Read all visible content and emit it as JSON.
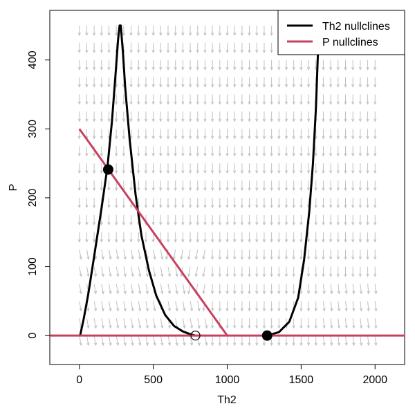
{
  "chart_data": {
    "type": "phase-plane",
    "title": "",
    "xlabel": "Th2",
    "ylabel": "P",
    "xlim": [
      -200,
      2200
    ],
    "ylim": [
      -42,
      472
    ],
    "xticks": [
      0,
      500,
      1000,
      1500,
      2000
    ],
    "yticks": [
      0,
      100,
      200,
      300,
      400
    ],
    "grid": false,
    "legend": {
      "position": "top-right",
      "entries": [
        {
          "label": "Th2 nullclines",
          "color": "#000000"
        },
        {
          "label": "P nullclines",
          "color": "#c8405e"
        }
      ]
    },
    "series": [
      {
        "name": "Th2 nullcline (left hump)",
        "legend": "Th2 nullclines",
        "color": "#000000",
        "x": [
          5,
          30,
          60,
          100,
          150,
          190,
          220,
          245,
          262,
          272,
          280,
          295,
          310,
          340,
          380,
          420,
          470,
          520,
          580,
          640,
          700,
          750,
          785
        ],
        "y": [
          0,
          25,
          60,
          115,
          185,
          245,
          310,
          380,
          430,
          450,
          450,
          410,
          360,
          285,
          205,
          145,
          95,
          58,
          30,
          14,
          6,
          2,
          0
        ]
      },
      {
        "name": "Th2 nullcline (right branch)",
        "legend": "Th2 nullclines",
        "color": "#000000",
        "x": [
          1270,
          1350,
          1420,
          1480,
          1520,
          1555,
          1580,
          1600,
          1612,
          1620
        ],
        "y": [
          0,
          5,
          20,
          55,
          110,
          180,
          250,
          330,
          400,
          450
        ]
      },
      {
        "name": "P nullcline (diagonal)",
        "legend": "P nullclines",
        "color": "#c8405e",
        "x": [
          0,
          1000
        ],
        "y": [
          300,
          0
        ]
      },
      {
        "name": "P nullcline (P = 0)",
        "legend": "P nullclines",
        "color": "#c8405e",
        "x": [
          -200,
          2200
        ],
        "y": [
          0,
          0
        ]
      }
    ],
    "fixed_points": [
      {
        "x": 195,
        "y": 241,
        "stable": true
      },
      {
        "x": 785,
        "y": 0,
        "stable": false
      },
      {
        "x": 1270,
        "y": 0,
        "stable": true
      }
    ],
    "vector_field": {
      "x_start": 0,
      "x_end": 2000,
      "x_step": 50,
      "y_start": 0,
      "y_end": 450,
      "y_step": 25,
      "color": "#c0c0c0"
    }
  }
}
